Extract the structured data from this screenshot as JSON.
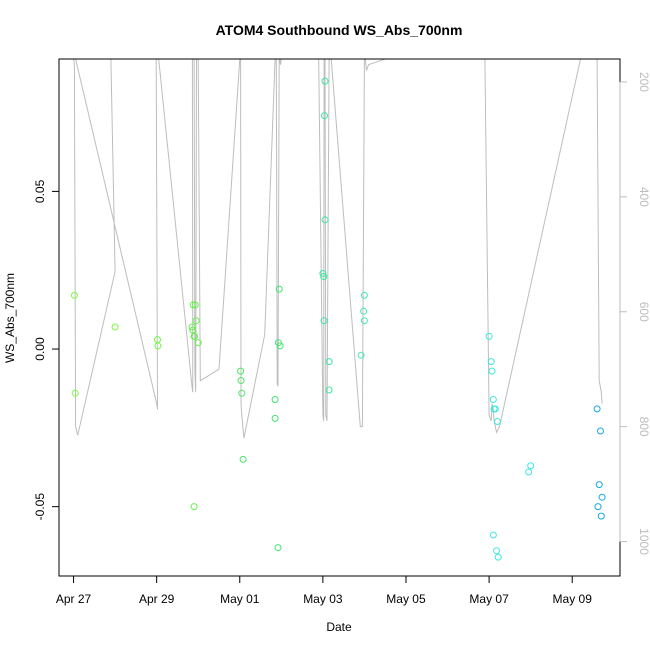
{
  "chart_data": {
    "type": "scatter",
    "title": "ATOM4 Southbound WS_Abs_700nm",
    "xlabel": "Date",
    "ylabel": "WS_Abs_700nm",
    "xlim": [
      -0.35,
      13.15
    ],
    "ylim": [
      -0.072,
      0.092
    ],
    "x_ticks": [
      {
        "value": 0,
        "label": "Apr 27"
      },
      {
        "value": 2,
        "label": "Apr 29"
      },
      {
        "value": 4,
        "label": "May 01"
      },
      {
        "value": 6,
        "label": "May 03"
      },
      {
        "value": 8,
        "label": "May 05"
      },
      {
        "value": 10,
        "label": "May 07"
      },
      {
        "value": 12,
        "label": "May 09"
      }
    ],
    "y_ticks": [
      {
        "value": -0.05,
        "label": "-0.05"
      },
      {
        "value": 0.0,
        "label": "0.00"
      },
      {
        "value": 0.05,
        "label": "0.05"
      }
    ],
    "y2_lim": [
      1060,
      160
    ],
    "y2_ticks": [
      {
        "value": 200,
        "label": "200"
      },
      {
        "value": 400,
        "label": "400"
      },
      {
        "value": 600,
        "label": "600"
      },
      {
        "value": 800,
        "label": "800"
      },
      {
        "value": 1000,
        "label": "1000"
      }
    ],
    "points": [
      {
        "x": 0.02,
        "y": 0.017,
        "color": "#7cfc3f"
      },
      {
        "x": 0.04,
        "y": -0.014,
        "color": "#7cfc3f"
      },
      {
        "x": 1.0,
        "y": 0.007,
        "color": "#7cfc3f"
      },
      {
        "x": 2.02,
        "y": 0.003,
        "color": "#72f845"
      },
      {
        "x": 2.03,
        "y": 0.001,
        "color": "#72f845"
      },
      {
        "x": 2.85,
        "y": 0.007,
        "color": "#66f04e"
      },
      {
        "x": 2.87,
        "y": 0.006,
        "color": "#66f04e"
      },
      {
        "x": 2.88,
        "y": 0.014,
        "color": "#66f04e"
      },
      {
        "x": 2.9,
        "y": 0.004,
        "color": "#66f04e"
      },
      {
        "x": 2.91,
        "y": 0.004,
        "color": "#66f04e"
      },
      {
        "x": 2.93,
        "y": 0.014,
        "color": "#66f04e"
      },
      {
        "x": 2.95,
        "y": 0.009,
        "color": "#66f04e"
      },
      {
        "x": 2.9,
        "y": -0.05,
        "color": "#66f04e"
      },
      {
        "x": 3.0,
        "y": 0.002,
        "color": "#66f04e"
      },
      {
        "x": 4.02,
        "y": -0.007,
        "color": "#4be865"
      },
      {
        "x": 4.03,
        "y": -0.01,
        "color": "#4be865"
      },
      {
        "x": 4.05,
        "y": -0.014,
        "color": "#4be865"
      },
      {
        "x": 4.08,
        "y": -0.035,
        "color": "#4be865"
      },
      {
        "x": 4.85,
        "y": -0.016,
        "color": "#40e870"
      },
      {
        "x": 4.85,
        "y": -0.022,
        "color": "#40e870"
      },
      {
        "x": 4.93,
        "y": 0.002,
        "color": "#40e870"
      },
      {
        "x": 4.95,
        "y": 0.019,
        "color": "#40e870"
      },
      {
        "x": 4.97,
        "y": 0.001,
        "color": "#40e870"
      },
      {
        "x": 4.92,
        "y": -0.063,
        "color": "#40e870"
      },
      {
        "x": 6.0,
        "y": 0.024,
        "color": "#38e8a0"
      },
      {
        "x": 6.02,
        "y": 0.023,
        "color": "#38e8a0"
      },
      {
        "x": 6.03,
        "y": 0.009,
        "color": "#38e8a0"
      },
      {
        "x": 6.05,
        "y": 0.041,
        "color": "#38e8a0"
      },
      {
        "x": 6.04,
        "y": 0.074,
        "color": "#38e8a0"
      },
      {
        "x": 6.05,
        "y": 0.085,
        "color": "#38e8a0"
      },
      {
        "x": 6.15,
        "y": -0.004,
        "color": "#38e8a0"
      },
      {
        "x": 6.15,
        "y": -0.013,
        "color": "#38e8a0"
      },
      {
        "x": 6.92,
        "y": -0.002,
        "color": "#40e8b0"
      },
      {
        "x": 6.98,
        "y": 0.012,
        "color": "#40e8b0"
      },
      {
        "x": 7.0,
        "y": 0.009,
        "color": "#40e8b0"
      },
      {
        "x": 7.0,
        "y": 0.017,
        "color": "#40e8b0"
      },
      {
        "x": 10.0,
        "y": 0.004,
        "color": "#3de8e0"
      },
      {
        "x": 10.05,
        "y": -0.004,
        "color": "#3de8e0"
      },
      {
        "x": 10.07,
        "y": -0.007,
        "color": "#3de8e0"
      },
      {
        "x": 10.1,
        "y": -0.016,
        "color": "#3de8e0"
      },
      {
        "x": 10.12,
        "y": -0.019,
        "color": "#3de8e0"
      },
      {
        "x": 10.15,
        "y": -0.019,
        "color": "#3de8e0"
      },
      {
        "x": 10.2,
        "y": -0.023,
        "color": "#3de8e0"
      },
      {
        "x": 10.1,
        "y": -0.059,
        "color": "#3de8e0"
      },
      {
        "x": 10.18,
        "y": -0.064,
        "color": "#3de8e0"
      },
      {
        "x": 10.22,
        "y": -0.066,
        "color": "#3de8e0"
      },
      {
        "x": 10.95,
        "y": -0.039,
        "color": "#38e8e8"
      },
      {
        "x": 11.0,
        "y": -0.037,
        "color": "#38e8e8"
      },
      {
        "x": 12.6,
        "y": -0.019,
        "color": "#18a8e8"
      },
      {
        "x": 12.68,
        "y": -0.026,
        "color": "#18a8e8"
      },
      {
        "x": 12.65,
        "y": -0.043,
        "color": "#18a8e8"
      },
      {
        "x": 12.72,
        "y": -0.047,
        "color": "#18a8e8"
      },
      {
        "x": 12.62,
        "y": -0.05,
        "color": "#18a8e8"
      },
      {
        "x": 12.7,
        "y": -0.053,
        "color": "#18a8e8"
      }
    ],
    "line": {
      "color": "#bdbdbd",
      "note": "flight altitude (right axis)",
      "x": [
        0.0,
        0.02,
        0.05,
        0.1,
        1.0,
        0.9,
        0.1,
        0.05,
        2.0,
        2.02,
        1.99,
        2.05,
        2.85,
        2.87,
        2.86,
        2.9,
        2.92,
        2.94,
        2.96,
        3.0,
        3.05,
        3.5,
        4.0,
        4.02,
        4.03,
        4.05,
        4.1,
        4.6,
        4.85,
        4.88,
        4.9,
        4.92,
        4.95,
        4.96,
        4.98,
        5.0,
        5.1,
        5.9,
        6.0,
        6.02,
        6.03,
        6.05,
        6.07,
        6.1,
        6.15,
        6.2,
        6.9,
        6.95,
        7.0,
        7.02,
        7.05,
        7.1,
        7.5,
        9.9,
        10.0,
        10.05,
        10.07,
        10.1,
        10.12,
        10.15,
        10.18,
        10.25,
        12.2,
        12.6,
        12.65,
        12.7,
        12.72
      ],
      "y": [
        160,
        170,
        800,
        815,
        530,
        160,
        160,
        160,
        760,
        770,
        160,
        160,
        730,
        740,
        160,
        160,
        700,
        740,
        160,
        160,
        720,
        700,
        160,
        160,
        760,
        780,
        820,
        640,
        160,
        160,
        725,
        730,
        160,
        160,
        170,
        160,
        160,
        160,
        780,
        790,
        160,
        160,
        780,
        790,
        160,
        160,
        800,
        800,
        160,
        160,
        180,
        170,
        160,
        160,
        780,
        790,
        760,
        770,
        790,
        800,
        810,
        800,
        160,
        160,
        720,
        740,
        760
      ]
    }
  }
}
